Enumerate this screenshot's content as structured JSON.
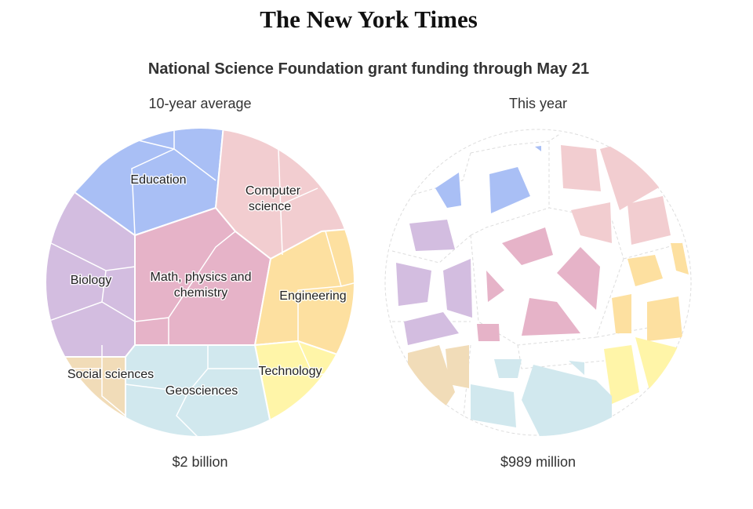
{
  "header": {
    "logo": "The New York Times"
  },
  "title": "National Science Foundation grant funding through May 21",
  "panels": [
    {
      "heading": "10-year average",
      "labels": [
        [
          "Education"
        ],
        [
          "Computer",
          "science"
        ],
        [
          "Biology"
        ],
        [
          "Math, physics and",
          "chemistry"
        ],
        [
          "Engineering"
        ],
        [
          "Social sciences"
        ],
        [
          "Geosciences"
        ],
        [
          "Technology"
        ]
      ],
      "total": "$2 billion"
    },
    {
      "heading": "This year",
      "total": "$989 million"
    }
  ]
}
